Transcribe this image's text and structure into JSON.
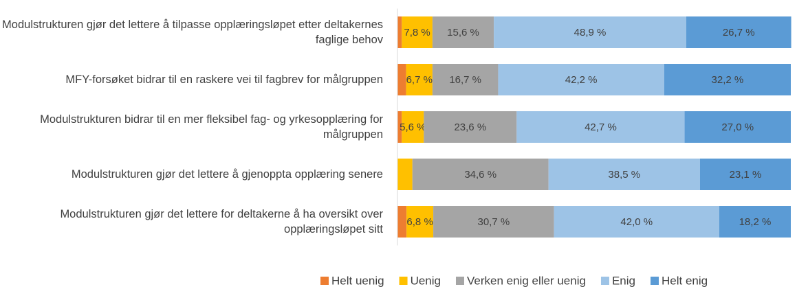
{
  "chart_data": {
    "type": "stacked-bar-horizontal",
    "categories": [
      "Modulstrukturen gjør det lettere å tilpasse opplæringsløpet etter deltakernes faglige behov",
      "MFY-forsøket bidrar til en raskere vei til fagbrev for målgruppen",
      "Modulstrukturen bidrar til en mer fleksibel fag- og yrkesopplæring for målgruppen",
      "Modulstrukturen gjør det lettere å gjenoppta opplæring senere",
      "Modulstrukturen gjør det lettere for deltakerne å ha oversikt over opplæringsløpet sitt"
    ],
    "series": [
      {
        "name": "Helt uenig",
        "color": "#ed7d31",
        "values": [
          1.1,
          2.2,
          1.1,
          0,
          2.3
        ],
        "value_labels": [
          null,
          null,
          null,
          null,
          null
        ]
      },
      {
        "name": "Uenig",
        "color": "#ffc000",
        "values": [
          7.8,
          6.7,
          5.6,
          3.8,
          6.8
        ],
        "value_labels": [
          "7,8 %",
          "6,7 %",
          "5,6 %",
          null,
          "6,8 %"
        ]
      },
      {
        "name": "Verken enig eller uenig",
        "color": "#a5a5a5",
        "values": [
          15.6,
          16.7,
          23.6,
          34.6,
          30.7
        ],
        "value_labels": [
          "15,6 %",
          "16,7 %",
          "23,6 %",
          "34,6 %",
          "30,7 %"
        ]
      },
      {
        "name": "Enig",
        "color": "#9dc3e6",
        "values": [
          48.9,
          42.2,
          42.7,
          38.5,
          42.0
        ],
        "value_labels": [
          "48,9 %",
          "42,2 %",
          "42,7 %",
          "38,5 %",
          "42,0 %"
        ]
      },
      {
        "name": "Helt enig",
        "color": "#5b9bd5",
        "values": [
          26.7,
          32.2,
          27.0,
          23.1,
          18.2
        ],
        "value_labels": [
          "26,7 %",
          "32,2 %",
          "27,0 %",
          "23,1 %",
          "18,2 %"
        ]
      }
    ],
    "xlim": [
      0,
      100
    ],
    "legend": "bottom"
  }
}
